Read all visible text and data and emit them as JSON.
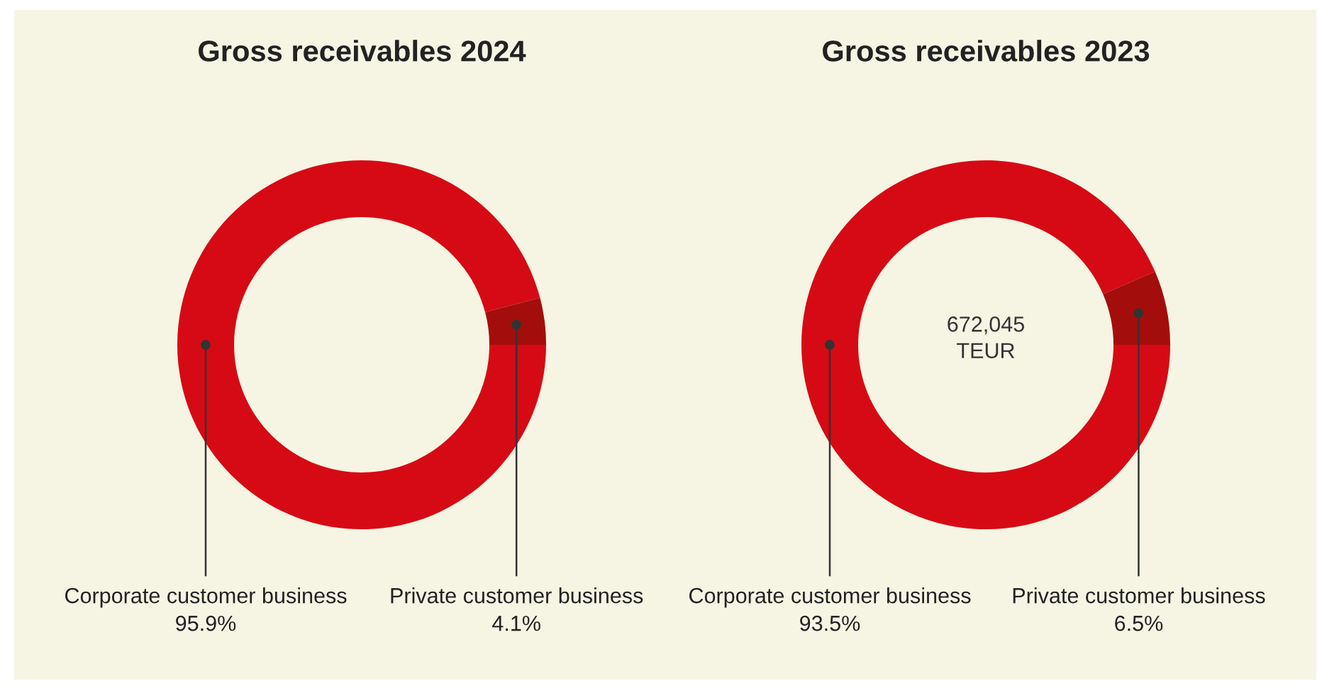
{
  "chart_data": [
    {
      "type": "donut",
      "title": "Gross receivables 2024",
      "categories": [
        "Corporate customer business",
        "Private customer business"
      ],
      "values": [
        95.9,
        4.1
      ],
      "colors": [
        "#d60a14",
        "#a30e0d"
      ],
      "value_labels": [
        "95.9%",
        "4.1%"
      ]
    },
    {
      "type": "donut",
      "title": "Gross receivables 2023",
      "categories": [
        "Corporate customer business",
        "Private customer business"
      ],
      "values": [
        93.5,
        6.5
      ],
      "colors": [
        "#d60a14",
        "#a30e0d"
      ],
      "value_labels": [
        "93.5%",
        "6.5%"
      ],
      "annotations": [
        "672,045\nTEUR"
      ]
    }
  ]
}
